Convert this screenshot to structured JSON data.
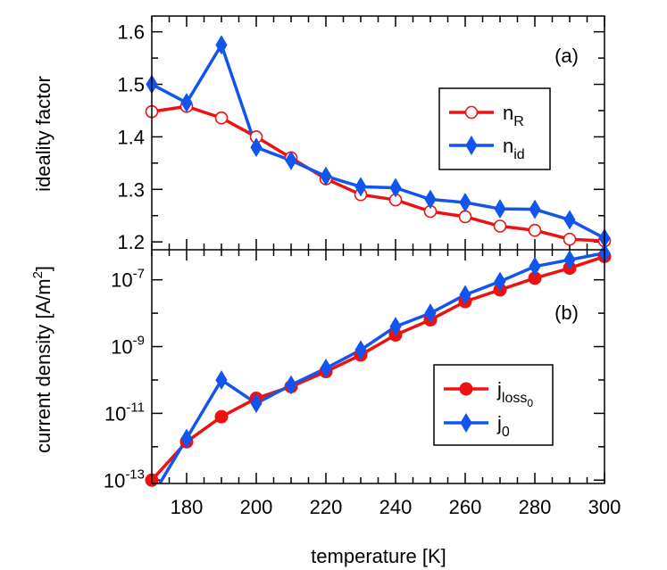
{
  "chart_data": [
    {
      "type": "line",
      "panel_label": "(a)",
      "ylabel": "ideality factor",
      "xlim": [
        170,
        300
      ],
      "ylim": [
        1.185,
        1.63
      ],
      "yticks": [
        1.2,
        1.3,
        1.4,
        1.5,
        1.6
      ],
      "ytick_labels": [
        "1.2",
        "1.3",
        "1.4",
        "1.5",
        "1.6"
      ],
      "legend_position": "upper-right",
      "series": [
        {
          "name": "n_R",
          "label_main": "n",
          "label_sub": "R",
          "color": "#ee1111",
          "marker": "open-circle",
          "x": [
            170,
            180,
            190,
            200,
            210,
            220,
            230,
            240,
            250,
            260,
            270,
            280,
            290,
            300
          ],
          "y": [
            1.448,
            1.458,
            1.436,
            1.4,
            1.36,
            1.32,
            1.29,
            1.28,
            1.258,
            1.248,
            1.23,
            1.222,
            1.205,
            1.202
          ]
        },
        {
          "name": "n_id",
          "label_main": "n",
          "label_sub": "id",
          "color": "#1155ee",
          "marker": "filled-diamond",
          "x": [
            170,
            180,
            190,
            200,
            210,
            220,
            230,
            240,
            250,
            260,
            270,
            280,
            290,
            300
          ],
          "y": [
            1.5,
            1.465,
            1.575,
            1.38,
            1.355,
            1.325,
            1.305,
            1.303,
            1.281,
            1.275,
            1.263,
            1.262,
            1.242,
            1.207
          ]
        }
      ]
    },
    {
      "type": "line",
      "panel_label": "(b)",
      "ylabel": "current density [A/m²]",
      "ylabel_main": "current density [A/m",
      "ylabel_sup": "2",
      "ylabel_end": "]",
      "xlabel": "temperature [K]",
      "xlim": [
        170,
        300
      ],
      "log_y": true,
      "ylim_exp": [
        -13.1,
        -6.1
      ],
      "yticks": [
        1e-13,
        1e-11,
        1e-09,
        1e-07
      ],
      "ytick_base": "10",
      "ytick_exponents": [
        "-13",
        "-11",
        "-9",
        "-7"
      ],
      "xticks": [
        180,
        200,
        220,
        240,
        260,
        280,
        300
      ],
      "xtick_labels": [
        "180",
        "200",
        "220",
        "240",
        "260",
        "280",
        "300"
      ],
      "legend_position": "lower-right",
      "series": [
        {
          "name": "j_loss0",
          "label_main": "j",
          "label_sub": "loss",
          "label_subsub": "0",
          "color": "#ee1111",
          "marker": "filled-circle",
          "x": [
            170,
            180,
            190,
            200,
            210,
            220,
            230,
            240,
            250,
            260,
            270,
            280,
            290,
            300
          ],
          "y_log10": [
            -13.0,
            -11.85,
            -11.1,
            -10.55,
            -10.2,
            -9.75,
            -9.25,
            -8.65,
            -8.2,
            -7.65,
            -7.3,
            -6.95,
            -6.65,
            -6.3
          ]
        },
        {
          "name": "j_0",
          "label_main": "j",
          "label_sub": "0",
          "color": "#1155ee",
          "marker": "filled-diamond",
          "x": [
            170,
            180,
            190,
            200,
            210,
            220,
            230,
            240,
            250,
            260,
            270,
            280,
            290,
            300
          ],
          "y_log10": [
            -13.5,
            -11.75,
            -10.0,
            -10.7,
            -10.15,
            -9.65,
            -9.1,
            -8.4,
            -8.0,
            -7.45,
            -7.05,
            -6.6,
            -6.4,
            -6.2
          ]
        }
      ]
    }
  ]
}
